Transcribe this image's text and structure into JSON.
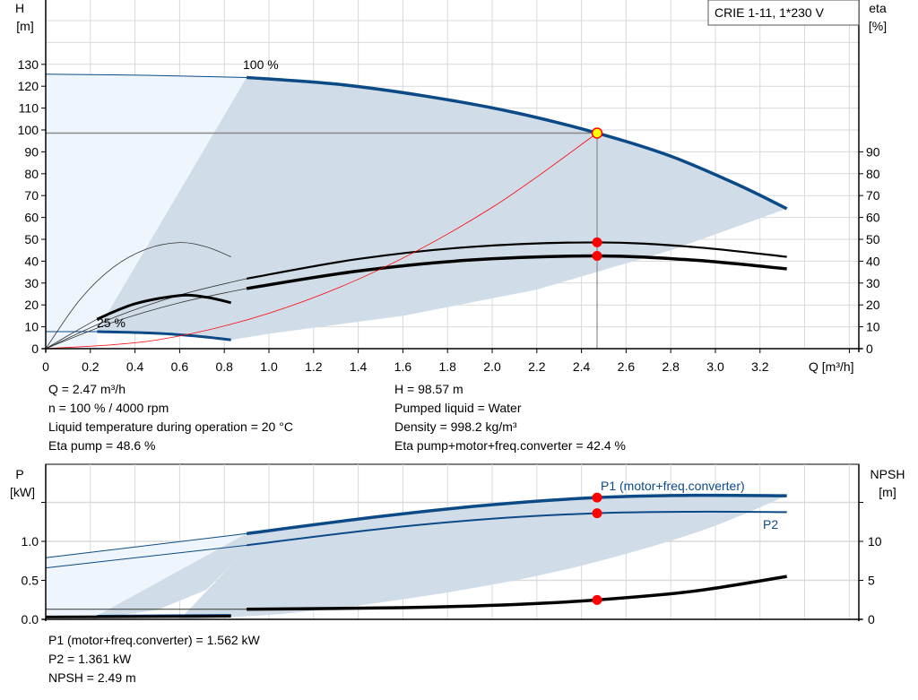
{
  "colors": {
    "curve_blue": "#0b4a86",
    "shade_dark": "#d0dce7",
    "shade_light": "#eef5fc",
    "system_curve": "#ff0000",
    "marker": "#ff0000",
    "duty_point_fill": "#ffff00",
    "grid": "#d9d9d9"
  },
  "legend_box": "CRIE 1-11, 1*230 V",
  "info_top": {
    "left": [
      "Q = 2.47 m³/h",
      "n = 100 % / 4000 rpm",
      "Liquid temperature during operation = 20 °C",
      "Eta pump = 48.6 %"
    ],
    "right": [
      "H = 98.57 m",
      "Pumped liquid = Water",
      "Density = 998.2 kg/m³",
      "Eta pump+motor+freq.converter = 42.4 %"
    ]
  },
  "info_bottom": [
    "P1 (motor+freq.converter) = 1.562 kW",
    "P2 = 1.361 kW",
    "NPSH = 2.49 m"
  ],
  "chart_data": [
    {
      "type": "line",
      "title": "",
      "xlabel": "Q [m³/h]",
      "ylabel_left": [
        "H",
        "[m]"
      ],
      "ylabel_right": [
        "eta",
        "[%]"
      ],
      "xlim": [
        0,
        3.6
      ],
      "ylim": [
        0,
        160
      ],
      "grid": true,
      "x_ticks": [
        "0",
        "0.2",
        "0.4",
        "0.6",
        "0.8",
        "1.0",
        "1.2",
        "1.4",
        "1.6",
        "1.8",
        "2.0",
        "2.2",
        "2.4",
        "2.6",
        "2.8",
        "3.0",
        "3.2"
      ],
      "y_ticks_left": [
        0,
        10,
        20,
        30,
        40,
        50,
        60,
        70,
        80,
        90,
        100,
        110,
        120,
        130
      ],
      "y_ticks_right": [
        0,
        10,
        20,
        30,
        40,
        50,
        60,
        70,
        80,
        90
      ],
      "annotations": [
        "100 %",
        "25 %"
      ],
      "series": [
        {
          "id": "h100_thin",
          "points": [
            [
              0,
              125.5
            ],
            [
              0.45,
              125
            ],
            [
              0.9,
              124
            ]
          ]
        },
        {
          "id": "h100",
          "points": [
            [
              0.9,
              124
            ],
            [
              1.3,
              121
            ],
            [
              1.7,
              115.5
            ],
            [
              2.1,
              108
            ],
            [
              2.47,
              98.57
            ],
            [
              2.8,
              88
            ],
            [
              3.1,
              75
            ],
            [
              3.32,
              64
            ]
          ]
        },
        {
          "id": "h25_thin",
          "points": [
            [
              0,
              7.8
            ],
            [
              0.23,
              7.8
            ]
          ]
        },
        {
          "id": "h25",
          "points": [
            [
              0.23,
              7.8
            ],
            [
              0.5,
              7
            ],
            [
              0.7,
              5.5
            ],
            [
              0.83,
              4
            ]
          ]
        },
        {
          "id": "eta_pump_thin",
          "points": [
            [
              0,
              0
            ],
            [
              0.3,
              14
            ],
            [
              0.6,
              24.5
            ],
            [
              0.9,
              32
            ]
          ]
        },
        {
          "id": "eta_pump",
          "points": [
            [
              0.9,
              32
            ],
            [
              1.4,
              41
            ],
            [
              1.9,
              46.5
            ],
            [
              2.47,
              48.6
            ],
            [
              2.9,
              46.5
            ],
            [
              3.32,
              42
            ]
          ]
        },
        {
          "id": "eta_total_thin",
          "points": [
            [
              0,
              0
            ],
            [
              0.3,
              12
            ],
            [
              0.6,
              21
            ],
            [
              0.9,
              27.5
            ]
          ]
        },
        {
          "id": "eta_total",
          "points": [
            [
              0.9,
              27.5
            ],
            [
              1.4,
              35.5
            ],
            [
              1.9,
              40.5
            ],
            [
              2.47,
              42.4
            ],
            [
              2.9,
              40.5
            ],
            [
              3.32,
              36.5
            ]
          ]
        },
        {
          "id": "eta_pump_25_thin",
          "points": [
            [
              0,
              0
            ],
            [
              0.15,
              22
            ],
            [
              0.3,
              37
            ],
            [
              0.45,
              45.5
            ],
            [
              0.6,
              48.5
            ],
            [
              0.72,
              46.5
            ],
            [
              0.83,
              42
            ]
          ]
        },
        {
          "id": "eta_total_25_thin",
          "points": [
            [
              0,
              0
            ],
            [
              0.1,
              6
            ],
            [
              0.23,
              13.5
            ]
          ]
        },
        {
          "id": "eta_25",
          "points": [
            [
              0.23,
              13.5
            ],
            [
              0.4,
              20.5
            ],
            [
              0.6,
              24.3
            ],
            [
              0.72,
              23.5
            ],
            [
              0.83,
              21
            ]
          ]
        },
        {
          "id": "system_curve",
          "points": [
            [
              0,
              0
            ],
            [
              0.5,
              4
            ],
            [
              1.0,
              16.2
            ],
            [
              1.5,
              36.4
            ],
            [
              2.0,
              64.6
            ],
            [
              2.47,
              98.57
            ]
          ]
        }
      ],
      "duty_point": {
        "Q": 2.47,
        "H": 98.57,
        "eta_pump": 48.6,
        "eta_total": 42.4
      }
    },
    {
      "type": "line",
      "title": "",
      "xlabel": "",
      "ylabel_left": [
        "P",
        "[kW]"
      ],
      "ylabel_right": [
        "NPSH",
        "[m]"
      ],
      "xlim": [
        0,
        3.6
      ],
      "ylim_left": [
        0,
        2.0
      ],
      "ylim_right": [
        0,
        20
      ],
      "grid": true,
      "y_ticks_left": [
        "0.0",
        "0.5",
        "1.0"
      ],
      "y_ticks_right": [
        "0",
        "5",
        "10"
      ],
      "series": [
        {
          "id": "p1_thin",
          "name": "P1 (motor+freq.converter)",
          "points": [
            [
              0,
              0.79
            ],
            [
              0.9,
              1.1
            ]
          ]
        },
        {
          "id": "p1",
          "name": "P1 (motor+freq.converter)",
          "points": [
            [
              0.9,
              1.1
            ],
            [
              1.5,
              1.32
            ],
            [
              2.0,
              1.47
            ],
            [
              2.47,
              1.562
            ],
            [
              2.9,
              1.59
            ],
            [
              3.32,
              1.585
            ]
          ]
        },
        {
          "id": "p2_thin",
          "name": "P2",
          "points": [
            [
              0,
              0.66
            ],
            [
              0.9,
              0.95
            ]
          ]
        },
        {
          "id": "p2",
          "name": "P2",
          "points": [
            [
              0.9,
              0.95
            ],
            [
              1.5,
              1.16
            ],
            [
              2.0,
              1.29
            ],
            [
              2.47,
              1.361
            ],
            [
              2.9,
              1.38
            ],
            [
              3.32,
              1.375
            ]
          ]
        },
        {
          "id": "npsh_thin",
          "points": [
            [
              0,
              1.3
            ],
            [
              0.9,
              1.3
            ]
          ]
        },
        {
          "id": "npsh",
          "points": [
            [
              0.9,
              1.3
            ],
            [
              1.6,
              1.5
            ],
            [
              2.1,
              1.9
            ],
            [
              2.47,
              2.49
            ],
            [
              2.9,
              3.6
            ],
            [
              3.32,
              5.5
            ]
          ]
        },
        {
          "id": "p_25",
          "points": [
            [
              0.23,
              0.04
            ],
            [
              0.83,
              0.05
            ]
          ]
        },
        {
          "id": "npsh_25",
          "points": [
            [
              0,
              0.3
            ],
            [
              0.83,
              0.4
            ]
          ]
        }
      ],
      "duty_point": {
        "Q": 2.47,
        "P1": 1.562,
        "P2": 1.361,
        "NPSH": 2.49
      }
    }
  ]
}
